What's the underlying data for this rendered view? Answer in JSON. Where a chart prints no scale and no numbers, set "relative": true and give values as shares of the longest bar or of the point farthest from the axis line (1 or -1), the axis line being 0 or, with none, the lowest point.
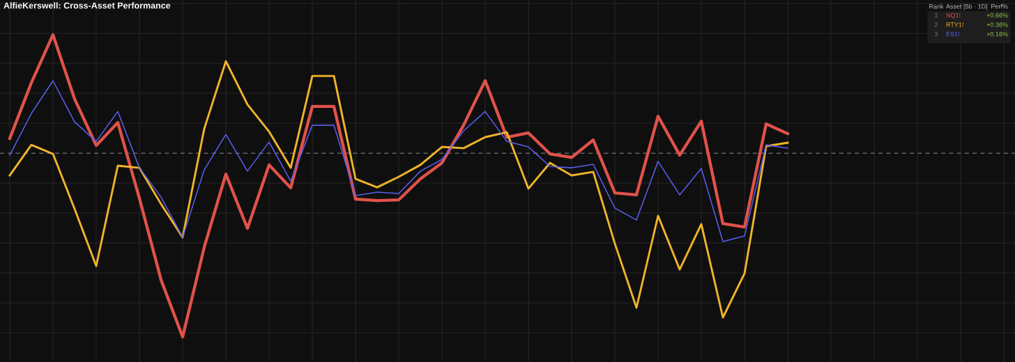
{
  "chart_data": {
    "type": "line",
    "title": "AlfieKerswell: Cross-Asset Performance",
    "relative": true,
    "categories": [
      null,
      null,
      null,
      null,
      null,
      null,
      null,
      null,
      null,
      null,
      null,
      null,
      null,
      null,
      null,
      null,
      null,
      null,
      null,
      null,
      null,
      null,
      null,
      null,
      null,
      null,
      null,
      null,
      null,
      null,
      null,
      null,
      null,
      null,
      null,
      null,
      null
    ],
    "series": [
      {
        "name": "NQ1!",
        "color": "#e0524a",
        "values": [
          0.08,
          0.383,
          0.644,
          0.295,
          0.042,
          0.167,
          -0.246,
          -0.689,
          -1,
          -0.511,
          -0.114,
          -0.409,
          -0.064,
          -0.189,
          0.254,
          0.254,
          -0.25,
          -0.258,
          -0.254,
          -0.14,
          -0.053,
          0.152,
          0.394,
          0.087,
          0.11,
          -0.004,
          -0.023,
          0.072,
          -0.216,
          -0.227,
          0.201,
          -0.011,
          0.174,
          -0.383,
          -0.402,
          0.159,
          0.106
        ]
      },
      {
        "name": "RTY1!",
        "color": "#f0b429",
        "values": [
          -0.121,
          0.045,
          -0.004,
          -0.303,
          -0.614,
          -0.068,
          -0.08,
          -0.277,
          -0.458,
          0.133,
          0.5,
          0.265,
          0.117,
          -0.08,
          0.42,
          0.42,
          -0.14,
          -0.186,
          -0.129,
          -0.064,
          0.034,
          0.027,
          0.087,
          0.114,
          -0.193,
          -0.053,
          -0.121,
          -0.102,
          -0.492,
          -0.841,
          -0.341,
          -0.633,
          -0.386,
          -0.894,
          -0.655,
          0.038,
          0.057
        ]
      },
      {
        "name": "ES1!",
        "color": "#5b5ff0",
        "values": [
          -0.011,
          0.216,
          0.394,
          0.17,
          0.064,
          0.227,
          -0.08,
          -0.239,
          -0.458,
          -0.091,
          0.102,
          -0.098,
          0.061,
          -0.152,
          0.152,
          0.152,
          -0.231,
          -0.212,
          -0.22,
          -0.098,
          -0.034,
          0.121,
          0.227,
          0.064,
          0.034,
          -0.072,
          -0.08,
          -0.061,
          -0.299,
          -0.364,
          -0.045,
          -0.227,
          -0.083,
          -0.481,
          -0.451,
          0.045,
          0.027
        ]
      }
    ],
    "ref_lines": [
      {
        "axis": "y",
        "value": 0,
        "color": "#777777",
        "line_style": "dashed"
      }
    ],
    "annotations": [
      "Rank",
      "Asset [5b · 1D]",
      "Perf%",
      "1",
      "2",
      "3",
      "+0.66%",
      "+0.36%",
      "+0.16%"
    ],
    "legend": "top right",
    "grid": true,
    "marker": "none",
    "line_style": "solid"
  }
}
